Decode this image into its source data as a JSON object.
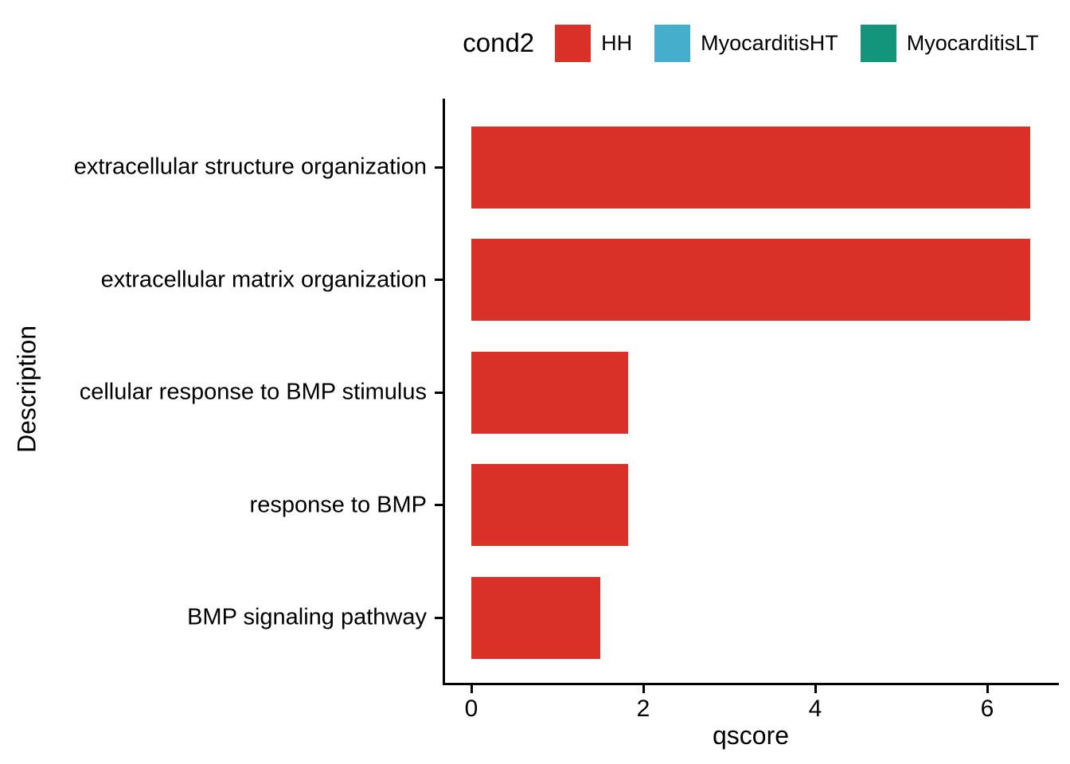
{
  "legend": {
    "title": "cond2",
    "items": [
      {
        "label": "HH",
        "color": "#d93128"
      },
      {
        "label": "MyocarditisHT",
        "color": "#45aecd"
      },
      {
        "label": "MyocarditisLT",
        "color": "#13957c"
      }
    ]
  },
  "axes": {
    "x_title": "qscore",
    "y_title": "Description"
  },
  "chart_data": {
    "type": "bar",
    "orientation": "horizontal",
    "title": "",
    "xlabel": "qscore",
    "ylabel": "Description",
    "categories": [
      "extracellular structure organization",
      "extracellular matrix organization",
      "cellular response to BMP stimulus",
      "response to BMP",
      "BMP signaling pathway"
    ],
    "series": [
      {
        "name": "HH",
        "color": "#d93128",
        "values": [
          6.5,
          6.5,
          1.82,
          1.82,
          1.5
        ]
      }
    ],
    "xlim": [
      0,
      6.82
    ],
    "x_ticks": [
      0,
      2,
      4,
      6
    ],
    "grid": false,
    "legend_title": "cond2",
    "legend_entries": [
      "HH",
      "MyocarditisHT",
      "MyocarditisLT"
    ],
    "legend_position": "top"
  }
}
